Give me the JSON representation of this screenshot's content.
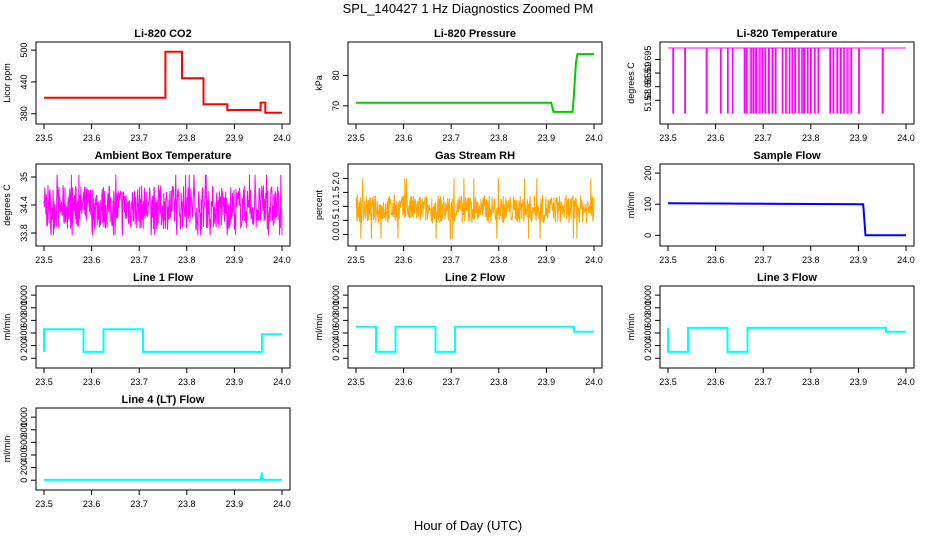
{
  "figure": {
    "title": "SPL_140427  1 Hz Diagnostics Zoomed PM",
    "xlabel": "Hour of Day (UTC)"
  },
  "chart_data": [
    {
      "type": "line",
      "title": "Li-820 CO2",
      "ylabel": "Licor ppm",
      "color": "#ff0000",
      "xlim": [
        23.5,
        24.0
      ],
      "ylim": [
        372,
        504
      ],
      "xticks": [
        "23.5",
        "23.6",
        "23.7",
        "23.8",
        "23.9",
        "24.0"
      ],
      "yticks": [
        380,
        440,
        500
      ],
      "series": [
        {
          "x": [
            23.5,
            23.755,
            23.755,
            23.79,
            23.79,
            23.835,
            23.835,
            23.885,
            23.885,
            23.955,
            23.955,
            23.965,
            23.965,
            24.0
          ],
          "y": [
            410,
            410,
            497,
            497,
            447,
            447,
            398,
            398,
            387,
            387,
            401,
            401,
            382,
            382
          ]
        }
      ]
    },
    {
      "type": "line",
      "title": "Li-820 Pressure",
      "ylabel": "kPa",
      "color": "#00cc00",
      "xlim": [
        23.5,
        24.0
      ],
      "ylim": [
        66,
        89
      ],
      "xticks": [
        "23.5",
        "23.6",
        "23.7",
        "23.8",
        "23.9",
        "24.0"
      ],
      "yticks": [
        70,
        80
      ],
      "series": [
        {
          "x": [
            23.5,
            23.91,
            23.915,
            23.955,
            23.958,
            23.962,
            23.965,
            23.97,
            24.0
          ],
          "y": [
            71,
            71,
            68,
            68,
            74,
            84,
            87,
            87,
            87
          ]
        }
      ]
    },
    {
      "type": "line",
      "title": "Li-820 Temperature",
      "ylabel": "degrees C",
      "color": "#ff00ff",
      "xlim": [
        23.5,
        24.0
      ],
      "ylim": [
        51.6735,
        51.6992
      ],
      "xticks": [
        "23.5",
        "23.6",
        "23.7",
        "23.8",
        "23.9",
        "24.0"
      ],
      "yticks": [
        51.68,
        51.685,
        51.69,
        51.695
      ],
      "series": [
        {
          "pattern": "binary",
          "low": 51.6753,
          "high": 51.6992,
          "x_dense": [
            [
              23.66,
              23.73
            ],
            [
              23.74,
              23.82
            ],
            [
              23.84,
              23.89
            ]
          ],
          "x_sparse": [
            23.51,
            23.535,
            23.58,
            23.61,
            23.625,
            23.635,
            23.9,
            23.95
          ]
        }
      ]
    },
    {
      "type": "line",
      "title": "Ambient Box Temperature",
      "ylabel": "degrees C",
      "color": "#ff00ff",
      "xlim": [
        23.5,
        24.0
      ],
      "ylim": [
        33.65,
        35.15
      ],
      "xticks": [
        "23.5",
        "23.6",
        "23.7",
        "23.8",
        "23.9",
        "24.0"
      ],
      "yticks": [
        33.8,
        34.4,
        35.0
      ],
      "series": [
        {
          "pattern": "noise",
          "mean": 34.35,
          "amplitude": 0.48,
          "min": 33.75,
          "max": 35.05
        }
      ]
    },
    {
      "type": "line",
      "title": "Gas Stream RH",
      "ylabel": "percent",
      "color": "#ffa500",
      "xlim": [
        23.5,
        24.0
      ],
      "ylim": [
        -0.2,
        2.3
      ],
      "xticks": [
        "23.5",
        "23.6",
        "23.7",
        "23.8",
        "23.9",
        "24.0"
      ],
      "yticks": [
        "0.0",
        "0.5",
        "1.0",
        "1.5",
        "2.0"
      ],
      "series": [
        {
          "pattern": "noise",
          "mean": 0.9,
          "amplitude": 0.5,
          "min": -0.15,
          "max": 2.25
        }
      ]
    },
    {
      "type": "line",
      "title": "Sample Flow",
      "ylabel": "ml/min",
      "color": "#0000ff",
      "xlim": [
        23.5,
        24.0
      ],
      "ylim": [
        -15,
        210
      ],
      "xticks": [
        "23.5",
        "23.6",
        "23.7",
        "23.8",
        "23.9",
        "24.0"
      ],
      "yticks": [
        0,
        100,
        200
      ],
      "series": [
        {
          "x": [
            23.5,
            23.91,
            23.915,
            24.0
          ],
          "y": [
            103,
            100,
            0,
            0
          ]
        }
      ]
    },
    {
      "type": "line",
      "title": "Line 1 Flow",
      "ylabel": "ml/min",
      "color": "#00ffff",
      "xlim": [
        23.5,
        24.0
      ],
      "ylim": [
        -60,
        1050
      ],
      "xticks": [
        "23.5",
        "23.6",
        "23.7",
        "23.8",
        "23.9",
        "24.0"
      ],
      "yticks": [
        0,
        200,
        400,
        600,
        800,
        1000
      ],
      "series": [
        {
          "x": [
            23.5,
            23.5,
            23.583,
            23.583,
            23.625,
            23.625,
            23.708,
            23.708,
            23.958,
            23.958,
            24.0
          ],
          "y": [
            100,
            460,
            460,
            100,
            100,
            460,
            460,
            100,
            100,
            380,
            380
          ]
        }
      ]
    },
    {
      "type": "line",
      "title": "Line 2 Flow",
      "ylabel": "ml/min",
      "color": "#00ffff",
      "xlim": [
        23.5,
        24.0
      ],
      "ylim": [
        -60,
        1050
      ],
      "xticks": [
        "23.5",
        "23.6",
        "23.7",
        "23.8",
        "23.9",
        "24.0"
      ],
      "yticks": [
        0,
        200,
        400,
        600,
        800,
        1000
      ],
      "series": [
        {
          "x": [
            23.5,
            23.542,
            23.542,
            23.583,
            23.583,
            23.667,
            23.667,
            23.708,
            23.708,
            23.958,
            23.958,
            24.0
          ],
          "y": [
            500,
            500,
            100,
            100,
            500,
            500,
            100,
            100,
            500,
            500,
            420,
            420
          ]
        }
      ]
    },
    {
      "type": "line",
      "title": "Line 3 Flow",
      "ylabel": "ml/min",
      "color": "#00ffff",
      "xlim": [
        23.5,
        24.0
      ],
      "ylim": [
        -60,
        1050
      ],
      "xticks": [
        "23.5",
        "23.6",
        "23.7",
        "23.8",
        "23.9",
        "24.0"
      ],
      "yticks": [
        0,
        200,
        400,
        600,
        800,
        1000
      ],
      "series": [
        {
          "x": [
            23.5,
            23.5,
            23.542,
            23.542,
            23.625,
            23.625,
            23.667,
            23.667,
            23.958,
            23.958,
            24.0
          ],
          "y": [
            480,
            100,
            100,
            480,
            480,
            100,
            100,
            480,
            480,
            420,
            420
          ]
        }
      ]
    },
    {
      "type": "line",
      "title": "Line 4 (LT) Flow",
      "ylabel": "ml/min",
      "color": "#00ffff",
      "xlim": [
        23.5,
        24.0
      ],
      "ylim": [
        -60,
        1050
      ],
      "xticks": [
        "23.5",
        "23.6",
        "23.7",
        "23.8",
        "23.9",
        "24.0"
      ],
      "yticks": [
        0,
        200,
        400,
        600,
        800,
        1000
      ],
      "series": [
        {
          "x": [
            23.5,
            23.955,
            23.958,
            23.96,
            24.0
          ],
          "y": [
            5,
            5,
            120,
            5,
            5
          ]
        }
      ]
    }
  ]
}
